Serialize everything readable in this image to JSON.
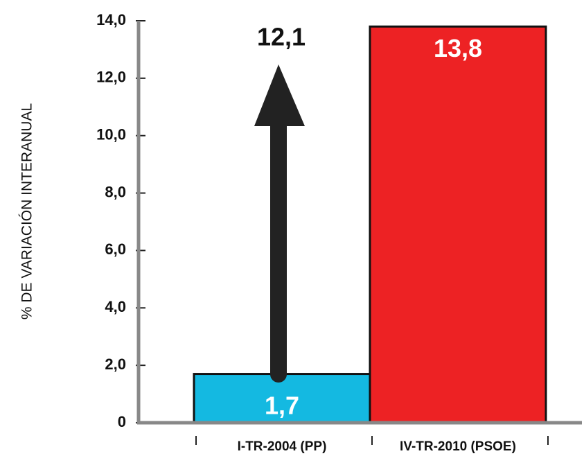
{
  "chart_data": {
    "type": "bar",
    "y_axis_label": "% DE VARIACIÓN INTERANUAL",
    "categories": [
      "I-TR-2004 (PP)",
      "IV-TR-2010 (PSOE)"
    ],
    "values": [
      1.7,
      13.8
    ],
    "value_labels": [
      "1,7",
      "13,8"
    ],
    "colors": [
      "#14b9e1",
      "#ed2224"
    ],
    "annotation": "12,1",
    "ylim": [
      0,
      14
    ],
    "yticks": [
      0,
      {
        "value": 2,
        "label": "2,0"
      },
      {
        "value": 4,
        "label": "4,0"
      },
      {
        "value": 6,
        "label": "6,0"
      },
      {
        "value": 8,
        "label": "8,0"
      },
      {
        "value": 10,
        "label": "10,0"
      },
      {
        "value": 12,
        "label": "12,0"
      },
      {
        "value": 14,
        "label": "14,0"
      }
    ]
  }
}
